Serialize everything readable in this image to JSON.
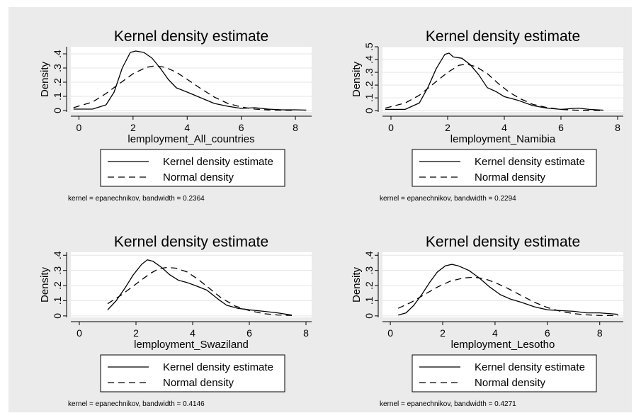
{
  "chart_data": [
    {
      "type": "line",
      "title": "Kernel density estimate",
      "xlabel": "lemployment_All_countries",
      "ylabel": "Density",
      "xlim": [
        -0.3,
        8.6
      ],
      "ylim": [
        -0.01,
        0.45
      ],
      "xticks": [
        "0",
        "2",
        "4",
        "6",
        "8"
      ],
      "xtick_values": [
        0,
        2,
        4,
        6,
        8
      ],
      "yticks": [
        "0",
        ".1",
        ".2",
        ".3",
        ".4"
      ],
      "ytick_values": [
        0,
        0.1,
        0.2,
        0.3,
        0.4
      ],
      "grid": true,
      "legend": {
        "position": "bottom",
        "entries": [
          "Kernel density estimate",
          "Normal density"
        ]
      },
      "note": "kernel = epanechnikov, bandwidth = 0.2364",
      "series": [
        {
          "name": "Kernel density estimate",
          "style": "solid",
          "x": [
            -0.2,
            0.5,
            1.0,
            1.3,
            1.6,
            1.9,
            2.1,
            2.4,
            2.7,
            3.0,
            3.3,
            3.6,
            4.0,
            4.5,
            5.0,
            5.5,
            6.0,
            6.5,
            7.0,
            7.5,
            8.0,
            8.4
          ],
          "y": [
            0.01,
            0.01,
            0.04,
            0.13,
            0.3,
            0.41,
            0.42,
            0.41,
            0.37,
            0.3,
            0.22,
            0.16,
            0.13,
            0.09,
            0.05,
            0.03,
            0.015,
            0.02,
            0.01,
            0.005,
            0.005,
            0.003
          ]
        },
        {
          "name": "Normal density",
          "style": "dashed",
          "x": [
            -0.2,
            0.5,
            1.0,
            1.5,
            2.0,
            2.5,
            2.8,
            3.2,
            3.6,
            4.0,
            4.5,
            5.0,
            5.5,
            6.0,
            6.5,
            7.0,
            7.5,
            8.0
          ],
          "y": [
            0.02,
            0.06,
            0.12,
            0.19,
            0.26,
            0.305,
            0.315,
            0.305,
            0.27,
            0.22,
            0.155,
            0.095,
            0.05,
            0.025,
            0.01,
            0.004,
            0.002,
            0.001
          ]
        }
      ]
    },
    {
      "type": "line",
      "title": "Kernel density estimate",
      "xlabel": "lemployment_Namibia",
      "ylabel": "Density",
      "xlim": [
        -0.3,
        8.2
      ],
      "ylim": [
        -0.01,
        0.5
      ],
      "xticks": [
        "0",
        "2",
        "4",
        "6",
        "8"
      ],
      "xtick_values": [
        0,
        2,
        4,
        6,
        8
      ],
      "yticks": [
        "0",
        ".1",
        ".2",
        ".3",
        ".4",
        ".5"
      ],
      "ytick_values": [
        0,
        0.1,
        0.2,
        0.3,
        0.4,
        0.5
      ],
      "grid": true,
      "legend": {
        "position": "bottom",
        "entries": [
          "Kernel density estimate",
          "Normal density"
        ]
      },
      "note": "kernel = epanechnikov, bandwidth = 0.2294",
      "series": [
        {
          "name": "Kernel density estimate",
          "style": "solid",
          "x": [
            -0.2,
            0.5,
            1.0,
            1.3,
            1.6,
            1.9,
            2.05,
            2.2,
            2.5,
            2.8,
            3.1,
            3.4,
            3.7,
            4.0,
            4.5,
            5.0,
            5.5,
            6.0,
            6.3,
            6.6,
            7.0,
            7.5
          ],
          "y": [
            0.01,
            0.01,
            0.06,
            0.18,
            0.33,
            0.44,
            0.45,
            0.42,
            0.41,
            0.36,
            0.28,
            0.18,
            0.15,
            0.11,
            0.08,
            0.04,
            0.02,
            0.01,
            0.015,
            0.02,
            0.01,
            0.004
          ]
        },
        {
          "name": "Normal density",
          "style": "dashed",
          "x": [
            -0.2,
            0.5,
            1.0,
            1.5,
            2.0,
            2.4,
            2.65,
            3.0,
            3.4,
            3.8,
            4.2,
            4.6,
            5.0,
            5.5,
            6.0,
            6.5,
            7.0,
            7.5
          ],
          "y": [
            0.02,
            0.06,
            0.12,
            0.21,
            0.3,
            0.355,
            0.365,
            0.345,
            0.29,
            0.21,
            0.14,
            0.09,
            0.05,
            0.025,
            0.01,
            0.004,
            0.002,
            0.001
          ]
        }
      ]
    },
    {
      "type": "line",
      "title": "Kernel density estimate",
      "xlabel": "lemployment_Swaziland",
      "ylabel": "Density",
      "xlim": [
        -0.3,
        8.2
      ],
      "ylim": [
        -0.01,
        0.42
      ],
      "xticks": [
        "0",
        "2",
        "4",
        "6",
        "8"
      ],
      "xtick_values": [
        0,
        2,
        4,
        6,
        8
      ],
      "yticks": [
        "0",
        ".1",
        ".2",
        ".3",
        ".4"
      ],
      "ytick_values": [
        0,
        0.1,
        0.2,
        0.3,
        0.4
      ],
      "grid": true,
      "legend": {
        "position": "bottom",
        "entries": [
          "Kernel density estimate",
          "Normal density"
        ]
      },
      "note": "kernel = epanechnikov, bandwidth = 0.4146",
      "series": [
        {
          "name": "Kernel density estimate",
          "style": "solid",
          "x": [
            1.0,
            1.3,
            1.6,
            1.9,
            2.2,
            2.4,
            2.6,
            2.9,
            3.2,
            3.5,
            3.8,
            4.1,
            4.5,
            4.9,
            5.2,
            5.6,
            6.0,
            6.5,
            7.0,
            7.5
          ],
          "y": [
            0.04,
            0.1,
            0.18,
            0.27,
            0.34,
            0.37,
            0.36,
            0.32,
            0.27,
            0.235,
            0.22,
            0.2,
            0.17,
            0.11,
            0.07,
            0.05,
            0.04,
            0.03,
            0.02,
            0.005
          ]
        },
        {
          "name": "Normal density",
          "style": "dashed",
          "x": [
            1.0,
            1.5,
            2.0,
            2.5,
            2.8,
            3.1,
            3.4,
            3.8,
            4.2,
            4.6,
            5.0,
            5.5,
            6.0,
            6.5,
            7.0,
            7.5
          ],
          "y": [
            0.08,
            0.14,
            0.21,
            0.28,
            0.31,
            0.32,
            0.315,
            0.29,
            0.24,
            0.18,
            0.12,
            0.065,
            0.035,
            0.015,
            0.006,
            0.003
          ]
        }
      ]
    },
    {
      "type": "line",
      "title": "Kernel density estimate",
      "xlabel": "lemployment_Lesotho",
      "ylabel": "Density",
      "xlim": [
        -0.3,
        8.9
      ],
      "ylim": [
        -0.01,
        0.42
      ],
      "xticks": [
        "0",
        "2",
        "4",
        "6",
        "8"
      ],
      "xtick_values": [
        0,
        2,
        4,
        6,
        8
      ],
      "yticks": [
        "0",
        ".1",
        ".2",
        ".3",
        ".4"
      ],
      "ytick_values": [
        0,
        0.1,
        0.2,
        0.3,
        0.4
      ],
      "grid": true,
      "legend": {
        "position": "bottom",
        "entries": [
          "Kernel density estimate",
          "Normal density"
        ]
      },
      "note": "kernel = epanechnikov, bandwidth = 0.4271",
      "series": [
        {
          "name": "Kernel density estimate",
          "style": "solid",
          "x": [
            0.3,
            0.6,
            0.9,
            1.2,
            1.5,
            1.8,
            2.1,
            2.35,
            2.6,
            3.0,
            3.4,
            3.8,
            4.2,
            4.6,
            5.0,
            5.5,
            6.0,
            6.5,
            7.0,
            7.5,
            8.0,
            8.7
          ],
          "y": [
            0.005,
            0.02,
            0.07,
            0.14,
            0.22,
            0.29,
            0.33,
            0.34,
            0.33,
            0.3,
            0.25,
            0.19,
            0.14,
            0.11,
            0.09,
            0.06,
            0.04,
            0.035,
            0.03,
            0.02,
            0.02,
            0.01
          ]
        },
        {
          "name": "Normal density",
          "style": "dashed",
          "x": [
            0.3,
            0.8,
            1.3,
            1.8,
            2.3,
            2.8,
            3.2,
            3.6,
            4.0,
            4.5,
            5.0,
            5.5,
            6.0,
            6.5,
            7.0,
            7.5,
            8.0,
            8.7
          ],
          "y": [
            0.05,
            0.09,
            0.14,
            0.19,
            0.23,
            0.25,
            0.255,
            0.245,
            0.22,
            0.18,
            0.135,
            0.09,
            0.055,
            0.03,
            0.015,
            0.007,
            0.003,
            0.001
          ]
        }
      ]
    }
  ]
}
